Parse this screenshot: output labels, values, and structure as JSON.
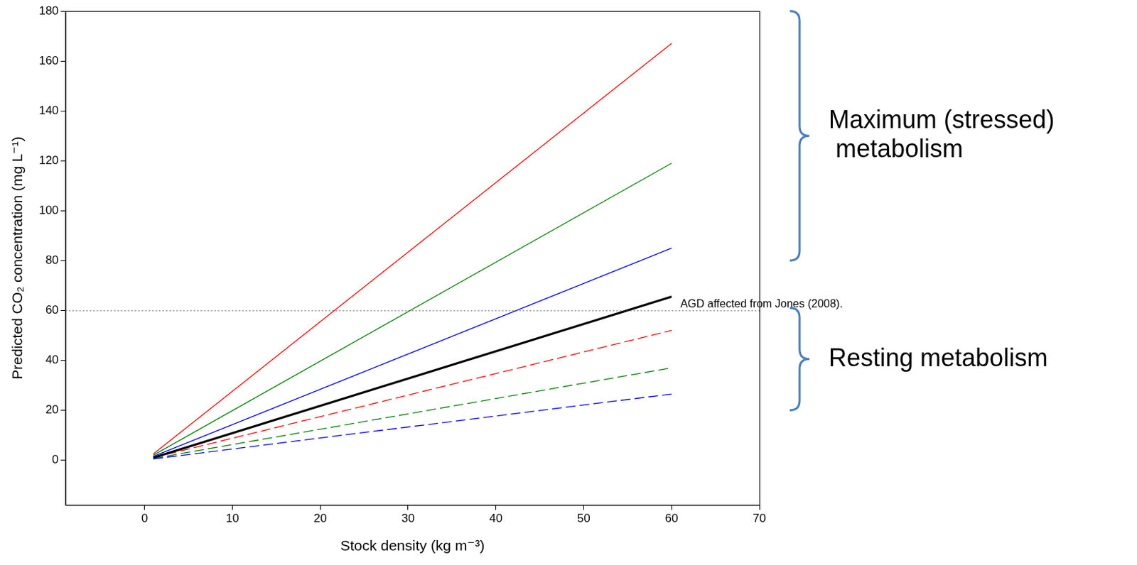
{
  "chart_data": {
    "type": "line",
    "x_label": "Stock density (kg m⁻³)",
    "y_label": "Predicted CO₂ concentration (mg L⁻¹)",
    "x": [
      1,
      60
    ],
    "series": [
      {
        "color": "#ff0000",
        "line_style": "solid",
        "values": [
          2.5,
          167
        ]
      },
      {
        "color": "#008000",
        "line_style": "solid",
        "values": [
          2,
          119
        ]
      },
      {
        "color": "#0000ff",
        "line_style": "solid",
        "values": [
          1.5,
          85
        ]
      },
      {
        "color": "#000000",
        "line_style": "thick",
        "values": [
          1,
          65.5
        ]
      },
      {
        "color": "#ff0000",
        "line_style": "dashed",
        "values": [
          1,
          52
        ]
      },
      {
        "color": "#008000",
        "line_style": "dashed",
        "values": [
          0.7,
          37
        ]
      },
      {
        "color": "#0000ff",
        "line_style": "dashed",
        "values": [
          0.5,
          26.5
        ]
      }
    ],
    "xlim": [
      -9,
      70
    ],
    "xticks": [
      0,
      10,
      20,
      30,
      40,
      50,
      60,
      70
    ],
    "ylim": [
      -18,
      180
    ],
    "yticks": [
      0,
      20,
      40,
      60,
      80,
      100,
      120,
      140,
      160,
      180
    ],
    "grid": false,
    "legend": false,
    "reference_line": {
      "y": 60,
      "line_style": "dotted",
      "text": "AGD affected from Jones (2008).",
      "text_x": 61
    },
    "annotations": [
      {
        "text": "Maximum (stressed) metabolism",
        "y_range": [
          80,
          180
        ]
      },
      {
        "text": "Resting metabolism",
        "y_range": [
          20,
          61
        ]
      }
    ]
  }
}
